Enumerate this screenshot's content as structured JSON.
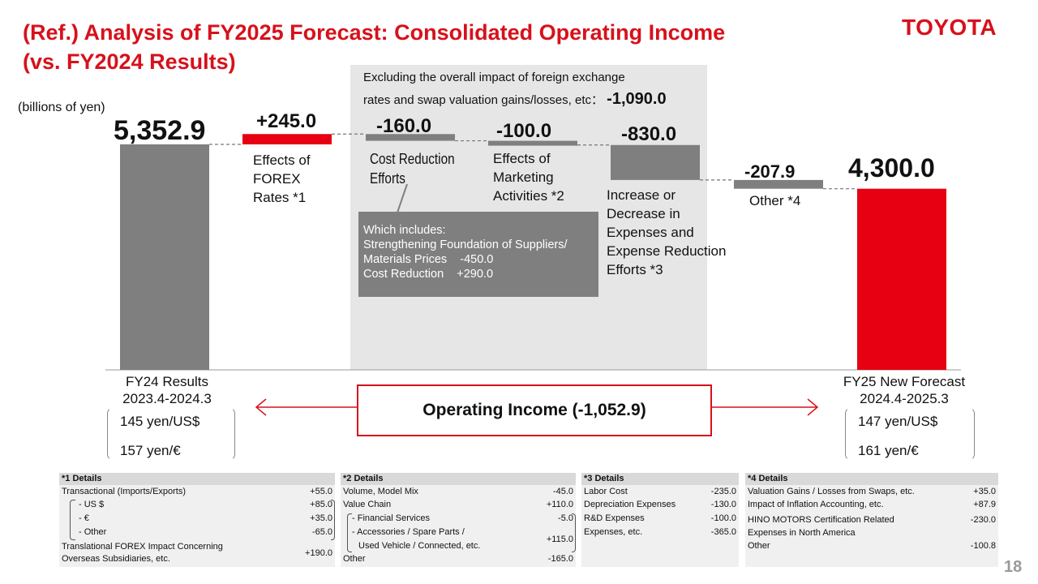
{
  "header": {
    "title_line1": "(Ref.) Analysis of FY2025 Forecast: Consolidated Operating Income",
    "title_line2": "(vs. FY2024 Results)",
    "logo": "TOYOTA",
    "unit": "(billions of yen)",
    "page_number": "18"
  },
  "note": {
    "line1": "Excluding the overall impact of foreign exchange",
    "line2": "rates and swap valuation gains/losses, etc：",
    "value": "-1,090.0"
  },
  "chart_data": {
    "type": "waterfall",
    "unit": "billions of yen",
    "bars": [
      {
        "label": "FY24 Results",
        "value": 5352.9,
        "display": "5,352.9",
        "kind": "total",
        "color": "#7f7f7f"
      },
      {
        "label": "Effects of FOREX Rates *1",
        "value": 245.0,
        "display": "+245.0",
        "kind": "delta",
        "color": "#e60012"
      },
      {
        "label": "Cost Reduction Efforts",
        "value": -160.0,
        "display": "-160.0",
        "kind": "delta",
        "color": "#7f7f7f"
      },
      {
        "label": "Effects of Marketing Activities *2",
        "value": -100.0,
        "display": "-100.0",
        "kind": "delta",
        "color": "#7f7f7f"
      },
      {
        "label": "Increase or Decrease in Expenses and Expense Reduction Efforts *3",
        "value": -830.0,
        "display": "-830.0",
        "kind": "delta",
        "color": "#7f7f7f"
      },
      {
        "label": "Other *4",
        "value": -207.9,
        "display": "-207.9",
        "kind": "delta",
        "color": "#7f7f7f"
      },
      {
        "label": "FY25 New Forecast",
        "value": 4300.0,
        "display": "4,300.0",
        "kind": "total",
        "color": "#e60012"
      }
    ],
    "labels": {
      "forex": [
        "Effects of",
        "FOREX",
        "Rates *1"
      ],
      "cost": [
        "Cost Reduction",
        "Efforts"
      ],
      "marketing": [
        "Effects of",
        "Marketing",
        "Activities *2"
      ],
      "expenses": [
        "Increase or",
        "Decrease in",
        "Expenses and",
        "Expense Reduction",
        "Efforts *3"
      ],
      "other": "Other *4"
    }
  },
  "includes": {
    "line1": "Which includes:",
    "line2": "Strengthening Foundation of Suppliers/",
    "line3": "Materials Prices    -450.0",
    "line4": "Cost Reduction    +290.0"
  },
  "fy24": {
    "title": "FY24 Results",
    "period": "2023.4-2024.3",
    "usd": "145 yen/US$",
    "eur": "157 yen/€"
  },
  "fy25": {
    "title": "FY25 New Forecast",
    "period": "2024.4-2025.3",
    "usd": "147 yen/US$",
    "eur": "161 yen/€"
  },
  "operating_income": "Operating Income (-1,052.9)",
  "details": [
    {
      "title": "*1 Details",
      "rows": [
        {
          "label": "Transactional (Imports/Exports)",
          "value": "+55.0"
        },
        {
          "label": "- US $",
          "value": "+85.0"
        },
        {
          "label": "- €",
          "value": "+35.0"
        },
        {
          "label": "- Other",
          "value": "-65.0"
        },
        {
          "label": "Translational FOREX Impact Concerning",
          "label2": "Overseas Subsidiaries, etc.",
          "value": "+190.0"
        }
      ]
    },
    {
      "title": "*2 Details",
      "rows": [
        {
          "label": "Volume, Model Mix",
          "value": "-45.0"
        },
        {
          "label": "Value Chain",
          "value": "+110.0"
        },
        {
          "label": "- Financial Services",
          "value": "-5.0"
        },
        {
          "label": "- Accessories / Spare Parts /",
          "label2": "Used Vehicle / Connected, etc.",
          "value": "+115.0"
        },
        {
          "label": "Other",
          "value": "-165.0"
        }
      ]
    },
    {
      "title": "*3 Details",
      "rows": [
        {
          "label": "Labor Cost",
          "value": "-235.0"
        },
        {
          "label": "Depreciation Expenses",
          "value": "-130.0"
        },
        {
          "label": "R&D Expenses",
          "value": "-100.0"
        },
        {
          "label": "Expenses, etc.",
          "value": "-365.0"
        }
      ]
    },
    {
      "title": "*4 Details",
      "rows": [
        {
          "label": "Valuation Gains / Losses from Swaps, etc.",
          "value": "+35.0"
        },
        {
          "label": "Impact of Inflation Accounting, etc.",
          "value": "+87.9"
        },
        {
          "label": "HINO MOTORS Certification Related",
          "label2": "Expenses in North America",
          "value": "-230.0"
        },
        {
          "label": "Other",
          "value": "-100.8"
        }
      ]
    }
  ]
}
